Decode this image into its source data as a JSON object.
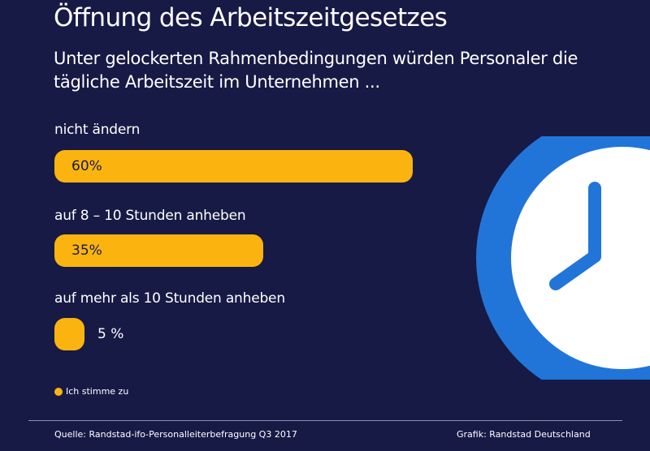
{
  "header": {
    "title": "Öffnung des Arbeitszeitgesetzes",
    "subtitle": "Unter gelockerten Rahmenbedingungen würden Personaler die tägliche Arbeitszeit im Unternehmen ..."
  },
  "chart_data": {
    "type": "bar",
    "orientation": "horizontal",
    "title": "Öffnung des Arbeitszeitgesetzes",
    "subtitle": "Unter gelockerten Rahmenbedingungen würden Personaler die tägliche Arbeitszeit im Unternehmen ...",
    "categories": [
      "nicht ändern",
      "auf 8 – 10 Stunden anheben",
      "auf mehr als 10 Stunden anheben"
    ],
    "values": [
      60,
      35,
      5
    ],
    "value_labels": [
      "60%",
      "35%",
      "5 %"
    ],
    "unit": "%",
    "xlim": [
      0,
      60
    ],
    "series": [
      {
        "name": "Ich stimme zu",
        "values": [
          60,
          35,
          5
        ]
      }
    ],
    "legend_position": "bottom-left",
    "grid": false,
    "bar_color": "#fbb40f"
  },
  "legend": {
    "label": "Ich stimme zu"
  },
  "footer": {
    "source": "Quelle: Randstad-ifo-Personalleiterbefragung Q3 2017",
    "credit": "Grafik: Randstad Deutschland"
  },
  "colors": {
    "background": "#171a45",
    "bar": "#fbb40f",
    "clock_ring": "#2175d9",
    "clock_face": "#ffffff",
    "clock_hands": "#2175d9"
  },
  "decoration": {
    "icon": "clock-icon"
  }
}
